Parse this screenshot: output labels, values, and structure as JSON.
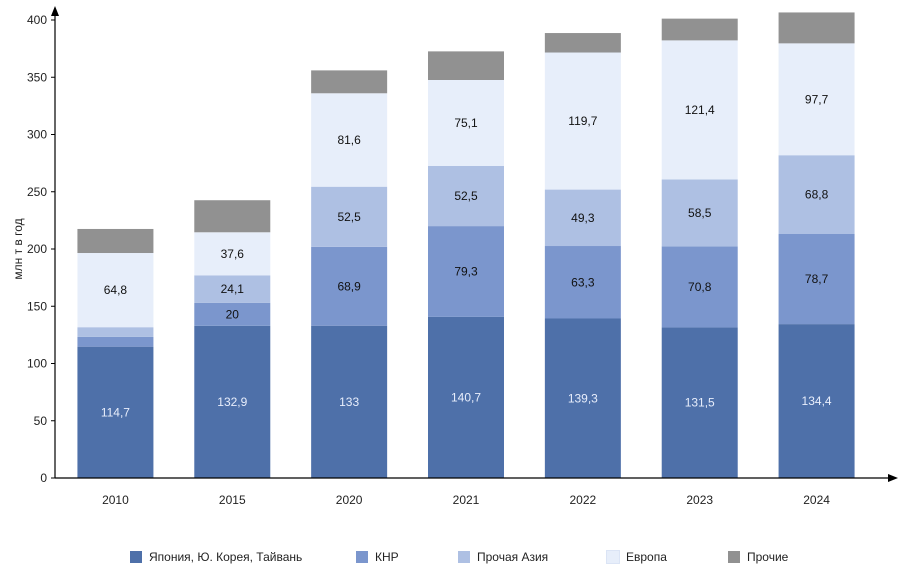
{
  "chart_data": {
    "type": "bar",
    "stacked": true,
    "title": "",
    "xlabel": "",
    "ylabel": "млн т в год",
    "ylim": [
      0,
      400
    ],
    "yticks": [
      0,
      50,
      100,
      150,
      200,
      250,
      300,
      350,
      400
    ],
    "grid": false,
    "legend_position": "bottom",
    "categories": [
      "2010",
      "2015",
      "2020",
      "2021",
      "2022",
      "2023",
      "2024"
    ],
    "series": [
      {
        "name": "Япония, Ю. Корея, Тайвань",
        "color": "#4e70a9",
        "values": [
          114.7,
          132.9,
          133,
          140.7,
          139.3,
          131.5,
          134.4
        ],
        "labels": [
          "114,7",
          "132,9",
          "133",
          "140,7",
          "139,3",
          "131,5",
          "134,4"
        ],
        "label_light": true
      },
      {
        "name": "КНР",
        "color": "#7b96cd",
        "values": [
          8.5,
          20,
          68.9,
          79.3,
          63.3,
          70.8,
          78.7
        ],
        "labels": [
          "",
          "20",
          "68,9",
          "79,3",
          "63,3",
          "70,8",
          "78,7"
        ],
        "label_light": false
      },
      {
        "name": "Прочая Азия",
        "color": "#aec0e3",
        "values": [
          8.5,
          24.1,
          52.5,
          52.5,
          49.3,
          58.5,
          68.8
        ],
        "labels": [
          "",
          "24,1",
          "52,5",
          "52,5",
          "49,3",
          "58,5",
          "68,8"
        ],
        "label_light": false
      },
      {
        "name": "Европа",
        "color": "#e7eefa",
        "values": [
          64.8,
          37.6,
          81.6,
          75.1,
          119.7,
          121.4,
          97.7
        ],
        "labels": [
          "64,8",
          "37,6",
          "81,6",
          "75,1",
          "119,7",
          "121,4",
          "97,7"
        ],
        "label_light": false
      },
      {
        "name": "Прочие",
        "color": "#919191",
        "values": [
          21,
          28,
          20,
          25,
          17,
          19,
          27
        ],
        "labels": [
          "",
          "",
          "",
          "",
          "",
          "",
          ""
        ],
        "label_light": false
      }
    ]
  }
}
